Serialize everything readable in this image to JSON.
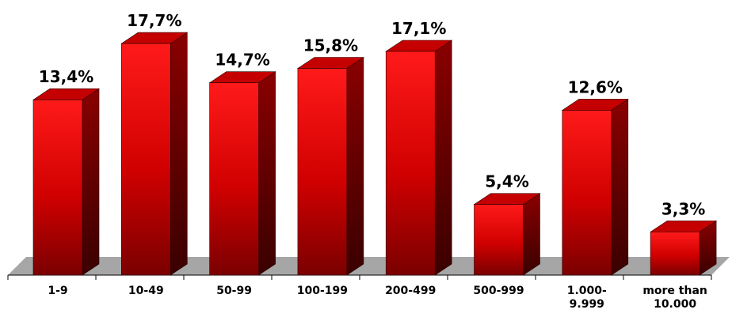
{
  "chart_data": {
    "type": "bar",
    "categories": [
      [
        "1-9"
      ],
      [
        "10-49"
      ],
      [
        "50-99"
      ],
      [
        "100-199"
      ],
      [
        "200-499"
      ],
      [
        "500-999"
      ],
      [
        "1.000-",
        "9.999"
      ],
      [
        "more than",
        "10.000"
      ]
    ],
    "values": [
      13.4,
      17.7,
      14.7,
      15.8,
      17.1,
      5.4,
      12.6,
      3.3
    ],
    "value_labels": [
      "13,4%",
      "17,7%",
      "14,7%",
      "15,8%",
      "17,1%",
      "5,4%",
      "12,6%",
      "3,3%"
    ],
    "title": "",
    "xlabel": "",
    "ylabel": "",
    "ylim": [
      0,
      20
    ],
    "grid": false,
    "legend": "none",
    "style": "3d-cylinder-free red boxes on grey floor",
    "colors": {
      "bar_front_light": "#ff1a1a",
      "bar_front_dark": "#7a0000",
      "bar_side": "#5a0000",
      "bar_top": "#c40000",
      "floor": "#a6a6a6"
    }
  }
}
